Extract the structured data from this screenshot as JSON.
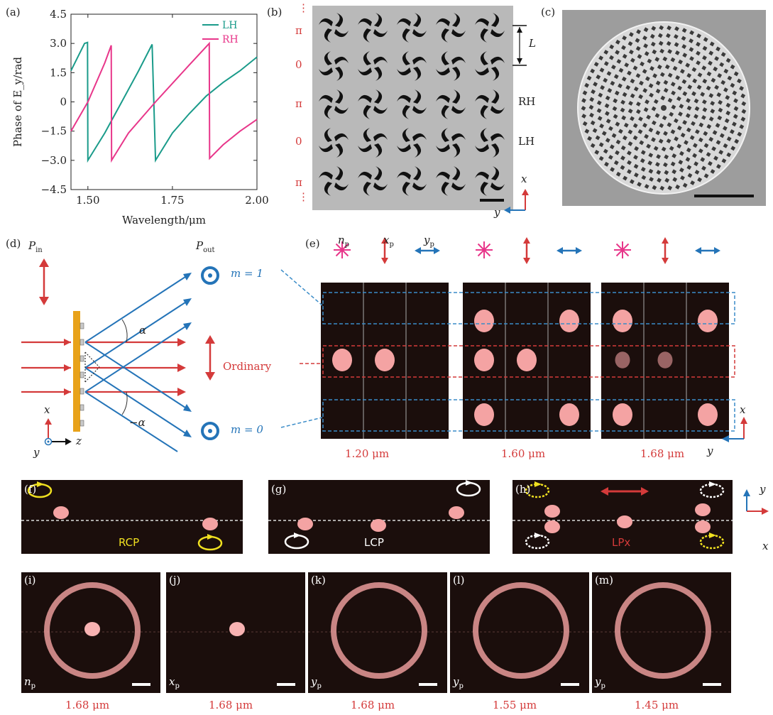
{
  "panel_letters": [
    "(a)",
    "(b)",
    "(c)",
    "(d)",
    "(e)",
    "(f)",
    "(g)",
    "(h)",
    "(i)",
    "(j)",
    "(k)",
    "(l)",
    "(m)"
  ],
  "chart_data": {
    "type": "line",
    "xlabel": "Wavelength/μm",
    "ylabel": "Phase of E_y/rad",
    "xlim": [
      1.45,
      2.0
    ],
    "ylim": [
      -4.5,
      4.5
    ],
    "x_ticks": [
      "1.50",
      "1.75",
      "2.00"
    ],
    "x_tick_values": [
      1.5,
      1.75,
      2.0
    ],
    "y_ticks": [
      "4.5",
      "3.0",
      "1.5",
      "0",
      "−1.5",
      "−3.0",
      "−4.5"
    ],
    "y_tick_values": [
      4.5,
      3.0,
      1.5,
      0,
      -1.5,
      -3.0,
      -4.5
    ],
    "legend_position": "top-right",
    "series": [
      {
        "name": "LH",
        "color": "#1a9b8a",
        "x": [
          1.45,
          1.49,
          1.499,
          1.5,
          1.55,
          1.6,
          1.65,
          1.69,
          1.7,
          1.75,
          1.8,
          1.85,
          1.9,
          1.95,
          2.0
        ],
        "y": [
          1.6,
          3.0,
          3.05,
          -3.0,
          -1.6,
          0.0,
          1.6,
          2.95,
          -3.0,
          -1.6,
          -0.6,
          0.3,
          1.0,
          1.6,
          2.3
        ]
      },
      {
        "name": "RH",
        "color": "#e8368a",
        "x": [
          1.45,
          1.5,
          1.55,
          1.569,
          1.57,
          1.62,
          1.7,
          1.8,
          1.859,
          1.86,
          1.9,
          1.95,
          2.0
        ],
        "y": [
          -1.5,
          0.0,
          2.0,
          2.9,
          -3.0,
          -1.6,
          0.0,
          1.9,
          3.0,
          -2.9,
          -2.2,
          -1.5,
          -0.9
        ]
      }
    ]
  },
  "b": {
    "row_labels": [
      "⋮",
      "π",
      "0",
      "π",
      "0",
      "π",
      "⋮"
    ],
    "side_labels": {
      "L": "L",
      "RH": "RH",
      "LH": "LH"
    },
    "axes": {
      "x": "x",
      "y": "y"
    }
  },
  "d": {
    "p_in": "P",
    "p_in_sub": "in",
    "p_out": "P",
    "p_out_sub": "out",
    "m1": "m = 1",
    "m0": "m = 0",
    "ordinary": "Ordinary",
    "alpha": "α",
    "neg_alpha": "−α",
    "axes": {
      "x": "x",
      "y": "y",
      "z": "z"
    }
  },
  "e": {
    "col_headers": [
      "n",
      "x",
      "y"
    ],
    "col_sub": "p",
    "wavelengths": [
      "1.20 μm",
      "1.60 μm",
      "1.68 μm"
    ],
    "axes": {
      "x": "x",
      "y": "y"
    }
  },
  "f": {
    "label": "RCP"
  },
  "g": {
    "label": "LCP"
  },
  "h": {
    "label": "LPx",
    "axes": {
      "x": "x",
      "y": "y"
    }
  },
  "rings": [
    {
      "letter": "(i)",
      "pol": "n",
      "sub": "p",
      "wl": "1.68 μm"
    },
    {
      "letter": "(j)",
      "pol": "x",
      "sub": "p",
      "wl": "1.68 μm"
    },
    {
      "letter": "(k)",
      "pol": "y",
      "sub": "p",
      "wl": "1.68 μm"
    },
    {
      "letter": "(l)",
      "pol": "y",
      "sub": "p",
      "wl": "1.55 μm"
    },
    {
      "letter": "(m)",
      "pol": "y",
      "sub": "p",
      "wl": "1.45 μm"
    }
  ],
  "colors": {
    "teal": "#1a9b8a",
    "pink": "#e8368a",
    "red": "#d43a3a",
    "blue": "#2474b8",
    "yellow": "#f0e020",
    "spot": "#f4a3a3"
  }
}
